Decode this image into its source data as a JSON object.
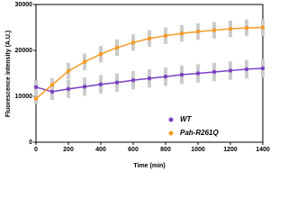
{
  "chart_data": {
    "type": "line",
    "xlabel": "Time (min)",
    "ylabel": "Fluorescence intensity (A.U.)",
    "x": [
      0,
      100,
      200,
      300,
      400,
      500,
      600,
      700,
      800,
      900,
      1000,
      1100,
      1200,
      1300,
      1400
    ],
    "series": [
      {
        "name": "WT",
        "color": "#7b3fc4",
        "values": [
          12000,
          11000,
          11600,
          12100,
          12600,
          13000,
          13500,
          13900,
          14300,
          14700,
          15000,
          15300,
          15600,
          15900,
          16100
        ],
        "errors": [
          1500,
          1800,
          2000,
          2000,
          2000,
          2000,
          2000,
          2000,
          2000,
          2000,
          2000,
          2000,
          2000,
          2000,
          2000
        ]
      },
      {
        "name": "Pah-R261Q",
        "color": "#f59a23",
        "values": [
          9500,
          12500,
          15500,
          17500,
          19200,
          20600,
          21700,
          22600,
          23200,
          23700,
          24100,
          24400,
          24700,
          24900,
          25000
        ],
        "errors": [
          1200,
          1500,
          1800,
          1800,
          1800,
          1800,
          1800,
          1800,
          1800,
          1800,
          1800,
          1800,
          1800,
          1800,
          1800
        ]
      }
    ],
    "errorbar_color": "#cccccc",
    "xlim": [
      0,
      1400
    ],
    "xticks": [
      0,
      200,
      400,
      600,
      800,
      1000,
      1200,
      1400
    ],
    "ylim": [
      0,
      30000
    ],
    "yticks": [
      0,
      10000,
      20000,
      30000
    ],
    "legend": "lower right"
  }
}
